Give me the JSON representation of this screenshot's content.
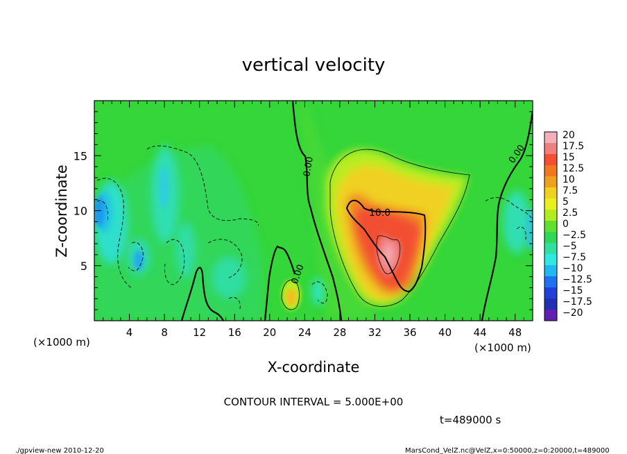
{
  "chart_data": {
    "type": "heatmap",
    "title": "vertical velocity",
    "xlabel": "X-coordinate",
    "ylabel": "Z-coordinate",
    "x_unit_label": "(×1000 m)",
    "x_unit_label_right": "(×1000 m)",
    "xlim": [
      0,
      50
    ],
    "ylim": [
      0,
      20
    ],
    "x_ticks": [
      4,
      8,
      12,
      16,
      20,
      24,
      28,
      32,
      36,
      40,
      44,
      48
    ],
    "y_ticks": [
      5,
      10,
      15
    ],
    "colorbar": {
      "levels": [
        -20,
        -17.5,
        -15,
        -12.5,
        -10,
        -7.5,
        -5,
        -2.5,
        0,
        2.5,
        5,
        7.5,
        10,
        12.5,
        15,
        17.5,
        20
      ],
      "labels": [
        "20",
        "17.5",
        "15",
        "12.5",
        "10",
        "7.5",
        "5",
        "2.5",
        "0",
        "−2.5",
        "−5",
        "−7.5",
        "−10",
        "−12.5",
        "−15",
        "−17.5",
        "−20"
      ],
      "colors": [
        "#f4b0b8",
        "#f08080",
        "#f25030",
        "#f07820",
        "#f0a020",
        "#f0d020",
        "#e8f020",
        "#b0ec20",
        "#60e030",
        "#30d858",
        "#30e0a0",
        "#30e8e0",
        "#20b8f0",
        "#2070f0",
        "#2040d8",
        "#2030b0",
        "#6020b0"
      ]
    },
    "contour_labels": [
      "0.00",
      "0.00",
      "10.0",
      "0.00"
    ],
    "features": [
      {
        "name": "updraft core",
        "x": 33,
        "z": 6,
        "value": 20
      },
      {
        "name": "updraft region",
        "x": 33,
        "z": 9,
        "value": 12
      },
      {
        "name": "small updraft",
        "x": 22.5,
        "z": 2.5,
        "value": 7
      },
      {
        "name": "downdraft left",
        "x": 0.5,
        "z": 10,
        "value": -12
      },
      {
        "name": "downdraft right",
        "x": 48.5,
        "z": 8,
        "value": -6
      }
    ],
    "contour_interval_text": "CONTOUR INTERVAL = 5.000E+00",
    "time_text": "t=489000  s"
  },
  "footer": {
    "left": "./gpview-new  2010-12-20",
    "right": "MarsCond_VelZ.nc@VelZ,x=0:50000,z=0:20000,t=489000"
  }
}
